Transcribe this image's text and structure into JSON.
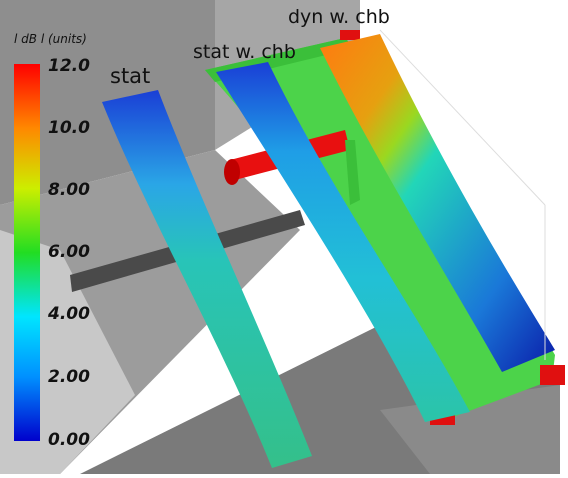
{
  "colorbar": {
    "title": "l dB l (units)",
    "ticks": [
      "12.0",
      "10.0",
      "8.00",
      "6.00",
      "4.00",
      "2.00",
      "0.00"
    ],
    "min": 0,
    "max": 12,
    "colors": [
      "#0000cc",
      "#00e5ff",
      "#22dd22",
      "#ffff00",
      "#ff8800",
      "#ff0000"
    ]
  },
  "labels": {
    "stat": "stat",
    "stat_chb": "stat w. chb",
    "dyn_chb": "dyn w. chb"
  }
}
